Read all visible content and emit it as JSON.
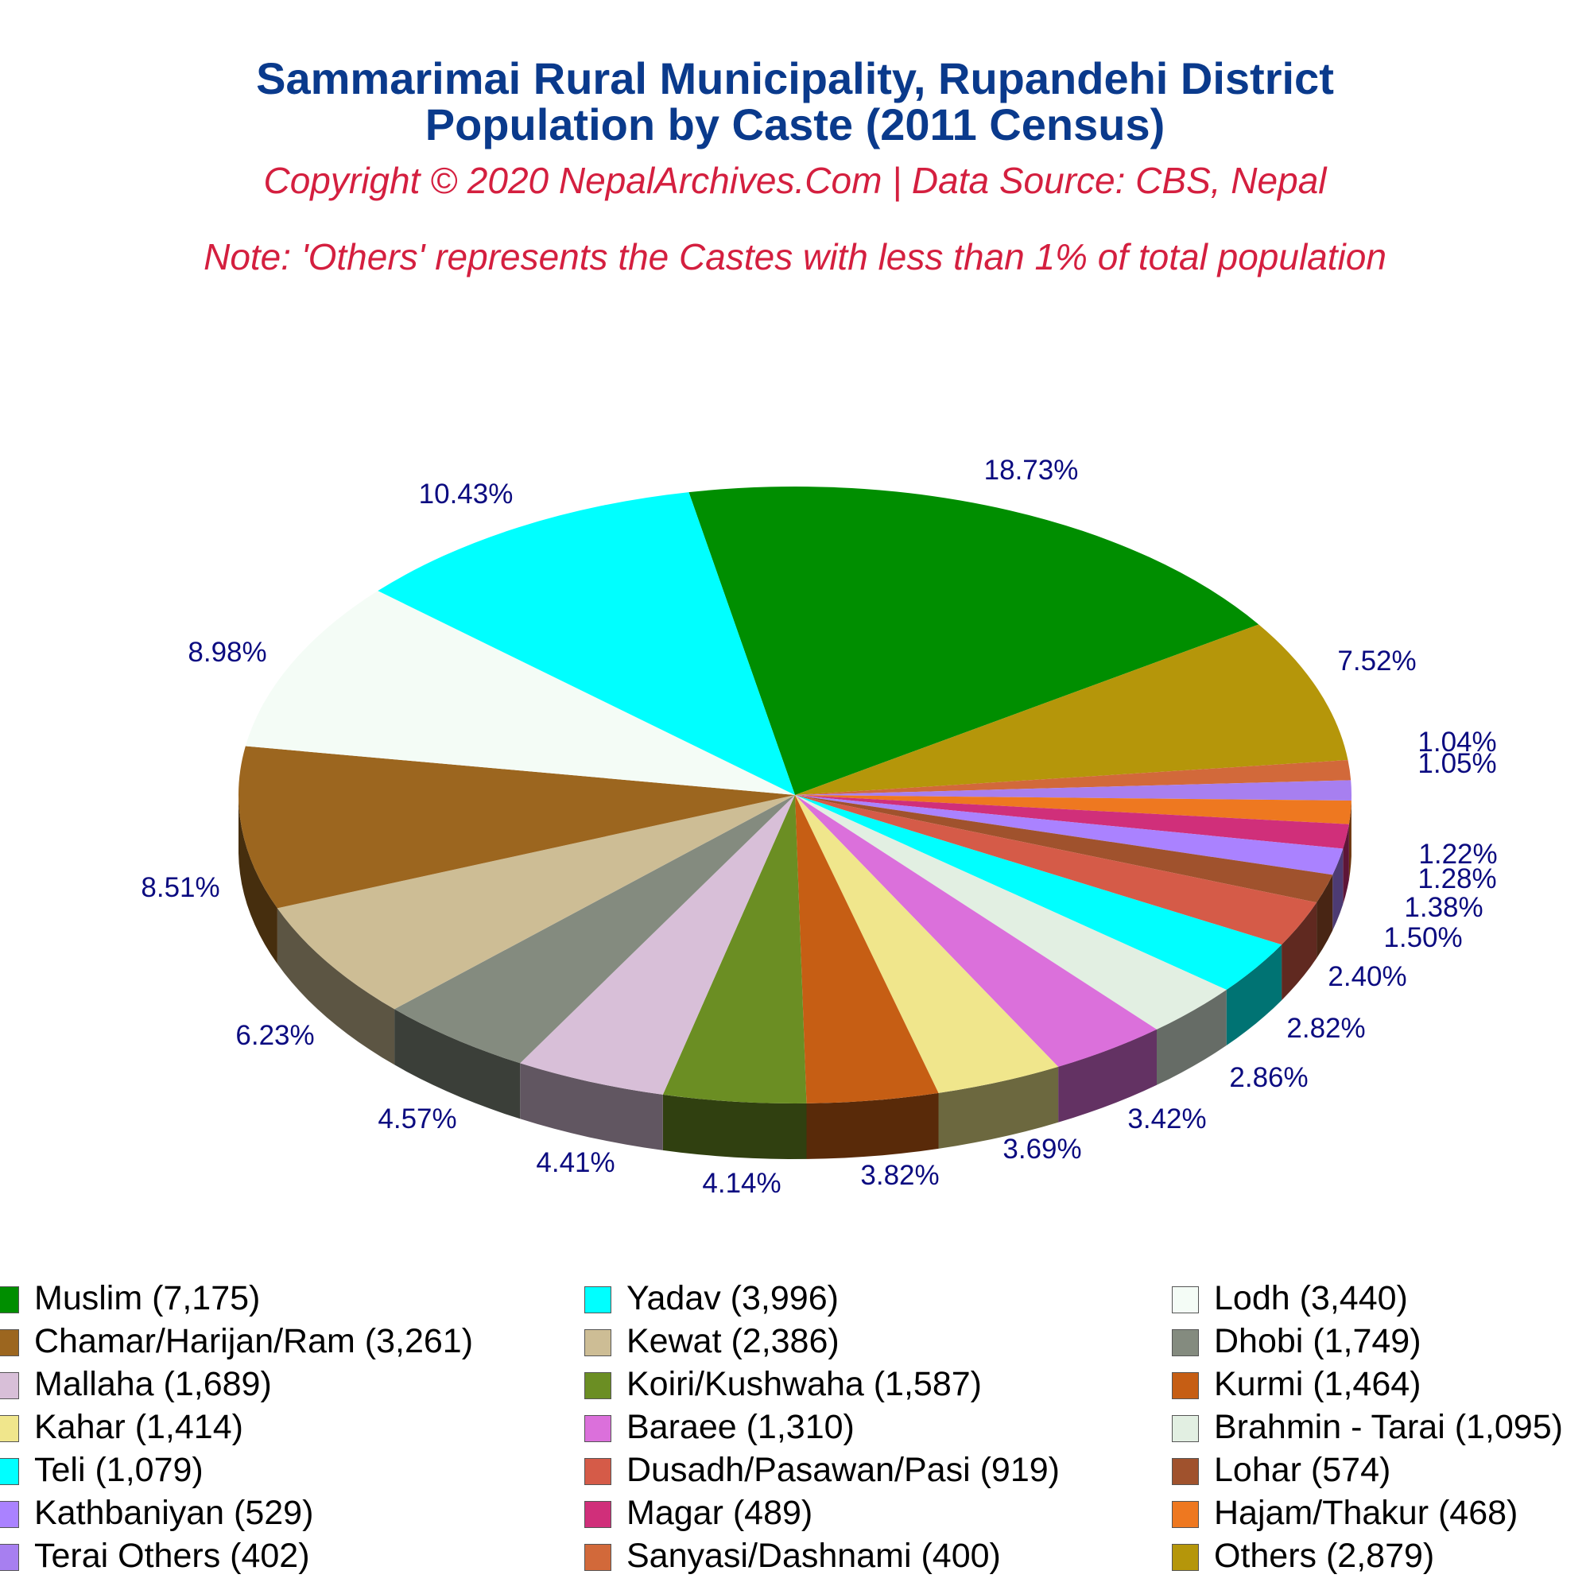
{
  "header": {
    "title_line1": "Sammarimai Rural Municipality, Rupandehi District",
    "title_line2": "Population by Caste (2011 Census)",
    "copyright": "Copyright © 2020 NepalArchives.Com | Data Source: CBS, Nepal",
    "note": "Note: 'Others' represents the Castes with less than 1% of total population"
  },
  "chart_data": {
    "type": "pie",
    "style": "3d",
    "legend_position": "bottom",
    "slices": [
      {
        "label": "Muslim (7,175)",
        "value": 7175,
        "percent": "18.73%",
        "color": "#008e00"
      },
      {
        "label": "Others (2,879)",
        "value": 2879,
        "percent": "7.52%",
        "color": "#b5960a"
      },
      {
        "label": "Sanyasi/Dashnami (400)",
        "value": 400,
        "percent": "1.04%",
        "color": "#d2693a"
      },
      {
        "label": "Terai Others (402)",
        "value": 402,
        "percent": "1.05%",
        "color": "#a77ff0"
      },
      {
        "label": "Hajam/Thakur (468)",
        "value": 468,
        "percent": "",
        "color": "#ee7820"
      },
      {
        "label": "Magar (489)",
        "value": 489,
        "percent": "",
        "color": "#d02f7a"
      },
      {
        "label": "Kathbaniyan (529)",
        "value": 529,
        "percent": "1.22%",
        "color": "#aa82ff"
      },
      {
        "label": "Lohar (574)",
        "value": 574,
        "percent": "1.28%",
        "color": "#a0522d"
      },
      {
        "label": "Dusadh/Pasawan/Pasi (919)",
        "value": 919,
        "percent": "1.38%",
        "color": "#d55b48"
      },
      {
        "label": "Teli (1,079)",
        "value": 1079,
        "percent": "1.50%",
        "color": "#00ffff"
      },
      {
        "label": "Brahmin - Tarai (1,095)",
        "value": 1095,
        "percent": "2.40%",
        "color": "#e2efe2"
      },
      {
        "label": "Baraee (1,310)",
        "value": 1310,
        "percent": "2.82%",
        "color": "#db70db"
      },
      {
        "label": "Kahar (1,414)",
        "value": 1414,
        "percent": "2.86%",
        "color": "#f0e68c"
      },
      {
        "label": "Kurmi (1,464)",
        "value": 1464,
        "percent": "3.42%",
        "color": "#c65e14"
      },
      {
        "label": "Koiri/Kushwaha (1,587)",
        "value": 1587,
        "percent": "3.69%",
        "color": "#6b8e23"
      },
      {
        "label": "Mallaha (1,689)",
        "value": 1689,
        "percent": "3.82%",
        "color": "#d8bfd8"
      },
      {
        "label": "Dhobi (1,749)",
        "value": 1749,
        "percent": "4.14%",
        "color": "#848b7f"
      },
      {
        "label": "Kewat (2,386)",
        "value": 2386,
        "percent": "4.41%",
        "color": "#cdbd95"
      },
      {
        "label": "Chamar/Harijan/Ram (3,261)",
        "value": 3261,
        "percent": "4.57%",
        "color": "#9c661f"
      },
      {
        "label": "Lodh (3,440)",
        "value": 3440,
        "percent": "6.23%",
        "color": "#f4fcf6"
      },
      {
        "label": "Yadav (3,996)",
        "value": 3996,
        "percent": "8.51%",
        "color": "#00ffff"
      },
      {
        "label": "",
        "value": 0,
        "percent": "8.98%",
        "color": "#ffffff"
      },
      {
        "label": "",
        "value": 0,
        "percent": "10.43%",
        "color": "#ffffff"
      }
    ],
    "legend": [
      {
        "label": "Muslim (7,175)",
        "color": "#008e00"
      },
      {
        "label": "Yadav (3,996)",
        "color": "#00ffff"
      },
      {
        "label": "Lodh (3,440)",
        "color": "#f4fcf6"
      },
      {
        "label": "Chamar/Harijan/Ram (3,261)",
        "color": "#9c661f"
      },
      {
        "label": "Kewat (2,386)",
        "color": "#cdbd95"
      },
      {
        "label": "Dhobi (1,749)",
        "color": "#848b7f"
      },
      {
        "label": "Mallaha (1,689)",
        "color": "#d8bfd8"
      },
      {
        "label": "Koiri/Kushwaha (1,587)",
        "color": "#6b8e23"
      },
      {
        "label": "Kurmi (1,464)",
        "color": "#c65e14"
      },
      {
        "label": "Kahar (1,414)",
        "color": "#f0e68c"
      },
      {
        "label": "Baraee (1,310)",
        "color": "#db70db"
      },
      {
        "label": "Brahmin - Tarai (1,095)",
        "color": "#e2efe2"
      },
      {
        "label": "Teli (1,079)",
        "color": "#00ffff"
      },
      {
        "label": "Dusadh/Pasawan/Pasi (919)",
        "color": "#d55b48"
      },
      {
        "label": "Lohar (574)",
        "color": "#a0522d"
      },
      {
        "label": "Kathbaniyan (529)",
        "color": "#aa82ff"
      },
      {
        "label": "Magar (489)",
        "color": "#d02f7a"
      },
      {
        "label": "Hajam/Thakur (468)",
        "color": "#ee7820"
      },
      {
        "label": "Terai Others (402)",
        "color": "#a77ff0"
      },
      {
        "label": "Sanyasi/Dashnami (400)",
        "color": "#d2693a"
      },
      {
        "label": "Others (2,879)",
        "color": "#b5960a"
      }
    ]
  }
}
